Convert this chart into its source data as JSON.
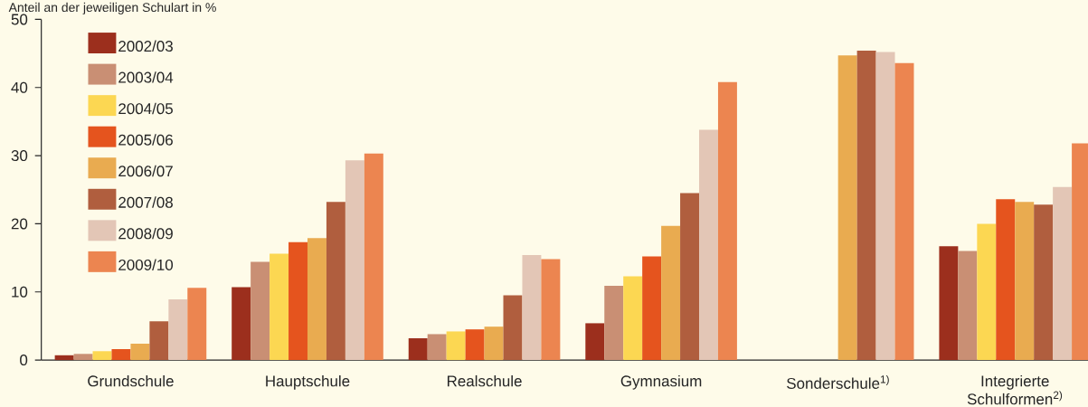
{
  "chart_data": {
    "type": "bar",
    "ylabel": "Anteil an der jeweiligen Schulart in %",
    "categories": [
      "Grundschule",
      "Hauptschule",
      "Realschule",
      "Gymnasium",
      "Sonderschule$^{1)}$",
      "Integrierte Schulformen$^{2)}$"
    ],
    "series": [
      {
        "name": "2002/03",
        "color": "#9c2f1d",
        "values": [
          0.7,
          10.7,
          3.2,
          5.4,
          null,
          16.7
        ]
      },
      {
        "name": "2003/04",
        "color": "#c98f74",
        "values": [
          0.9,
          14.4,
          3.8,
          10.9,
          null,
          16.0
        ]
      },
      {
        "name": "2004/05",
        "color": "#fcd752",
        "values": [
          1.3,
          15.6,
          4.2,
          12.3,
          null,
          20.0
        ]
      },
      {
        "name": "2005/06",
        "color": "#e5541e",
        "values": [
          1.6,
          17.3,
          4.5,
          15.2,
          null,
          23.6
        ]
      },
      {
        "name": "2006/07",
        "color": "#e9ab50",
        "values": [
          2.4,
          17.9,
          4.9,
          19.7,
          44.7,
          23.2
        ]
      },
      {
        "name": "2007/08",
        "color": "#b05e3e",
        "values": [
          5.7,
          23.2,
          9.5,
          24.5,
          45.4,
          22.8
        ]
      },
      {
        "name": "2008/09",
        "color": "#e3c6b6",
        "values": [
          8.9,
          29.3,
          15.4,
          33.8,
          45.2,
          25.4
        ]
      },
      {
        "name": "2009/10",
        "color": "#ec8550",
        "values": [
          10.6,
          30.3,
          14.8,
          40.8,
          43.6,
          31.8
        ]
      }
    ],
    "ylim": [
      0,
      50
    ],
    "yticks": [
      0,
      10,
      20,
      30,
      40,
      50
    ],
    "legend": "top left",
    "grid": false
  }
}
